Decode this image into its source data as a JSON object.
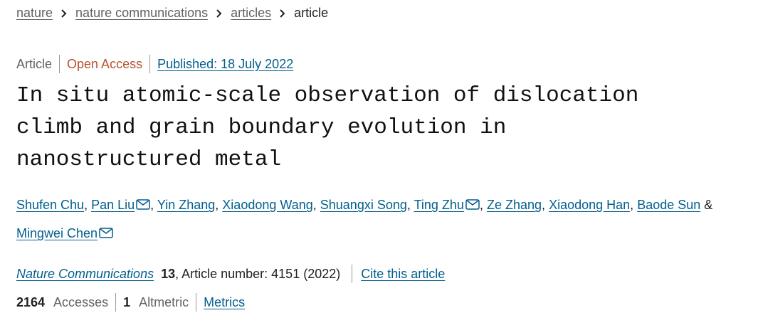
{
  "breadcrumb": [
    "nature",
    "nature communications",
    "articles",
    "article"
  ],
  "meta": {
    "type": "Article",
    "access": "Open Access",
    "published": "Published: 18 July 2022"
  },
  "title": "In situ atomic-scale observation of dislocation climb and grain boundary evolution in nanostructured metal",
  "authors": [
    {
      "name": "Shufen Chu",
      "suffix": ","
    },
    {
      "name": "Pan Liu",
      "email": true,
      "suffix": ","
    },
    {
      "name": "Yin Zhang",
      "suffix": ","
    },
    {
      "name": "Xiaodong Wang",
      "suffix": ","
    },
    {
      "name": "Shuangxi Song",
      "suffix": ","
    },
    {
      "name": "Ting Zhu",
      "email": true,
      "suffix": ","
    },
    {
      "name": "Ze Zhang",
      "suffix": ","
    },
    {
      "name": "Xiaodong Han",
      "suffix": ","
    },
    {
      "name": "Baode Sun",
      "suffix": "&"
    },
    {
      "name": "Mingwei Chen",
      "email": true
    }
  ],
  "citation": {
    "journal": "Nature Communications",
    "volume": "13",
    "details": ", Article number: 4151 (2022)",
    "cite": "Cite this article"
  },
  "metrics": {
    "accesses": "2164",
    "accesses_label": "Accesses",
    "altmetric": "1",
    "altmetric_label": "Altmetric",
    "link": "Metrics"
  }
}
